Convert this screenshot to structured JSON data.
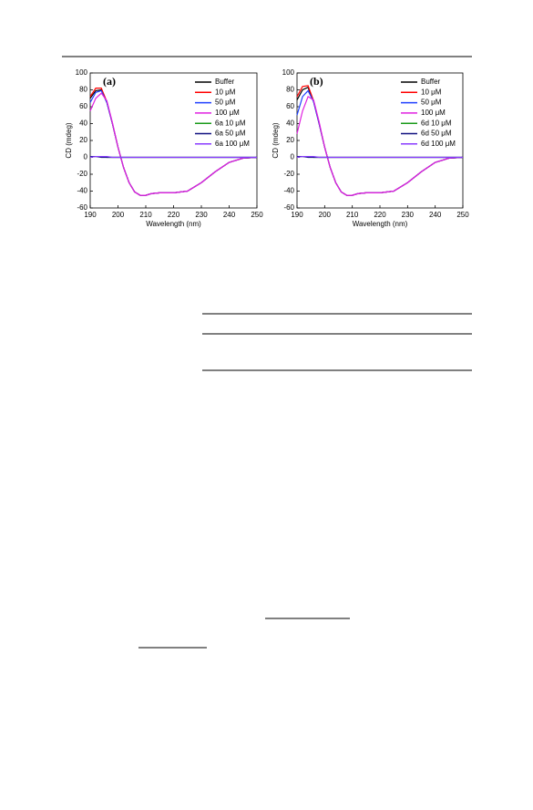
{
  "chart_data": [
    {
      "type": "line",
      "annotation": "(a)",
      "x_label": "Wavelength (nm)",
      "y_label": "CD (mdeg)",
      "x": [
        190,
        192,
        194,
        196,
        198,
        200,
        202,
        204,
        206,
        208,
        210,
        212,
        215,
        220,
        225,
        230,
        235,
        240,
        245,
        250
      ],
      "xlim": [
        190,
        250
      ],
      "ylim": [
        -60,
        100
      ],
      "xticks": [
        190,
        200,
        210,
        220,
        230,
        240,
        250
      ],
      "yticks": [
        -60,
        -40,
        -20,
        0,
        20,
        40,
        60,
        80,
        100
      ],
      "legend": "top-right",
      "series": [
        {
          "name": "Buffer",
          "color": "#000000",
          "values": [
            70,
            79,
            80,
            65,
            40,
            12,
            -12,
            -30,
            -41,
            -45,
            -45,
            -43,
            -42,
            -42,
            -40,
            -30,
            -17,
            -6,
            -1,
            0
          ]
        },
        {
          "name": "10 μM",
          "color": "#ff0000",
          "values": [
            72,
            82,
            82,
            66,
            40,
            12,
            -12,
            -30,
            -41,
            -45,
            -45,
            -43,
            -42,
            -42,
            -40,
            -30,
            -17,
            -6,
            -1,
            0
          ]
        },
        {
          "name": "50 μM",
          "color": "#1f3fff",
          "values": [
            65,
            77,
            79,
            65,
            40,
            12,
            -12,
            -30,
            -41,
            -45,
            -45,
            -43,
            -42,
            -42,
            -40,
            -30,
            -17,
            -6,
            -1,
            0
          ]
        },
        {
          "name": "100 μM",
          "color": "#e020e0",
          "values": [
            55,
            70,
            76,
            67,
            41,
            12,
            -12,
            -30,
            -41,
            -45,
            -45,
            -43,
            -42,
            -42,
            -40,
            -30,
            -17,
            -6,
            -1,
            0
          ]
        },
        {
          "name": "6a 10 μM",
          "color": "#1a9a1a",
          "values": [
            1,
            1,
            1,
            0,
            0,
            0,
            0,
            0,
            0,
            0,
            0,
            0,
            0,
            0,
            0,
            0,
            0,
            0,
            0,
            0
          ]
        },
        {
          "name": "6a 50 μM",
          "color": "#101080",
          "values": [
            1,
            1,
            0,
            0,
            0,
            0,
            0,
            0,
            0,
            0,
            0,
            0,
            0,
            0,
            0,
            0,
            0,
            0,
            0,
            0
          ]
        },
        {
          "name": "6a 100 μM",
          "color": "#8a3cff",
          "values": [
            0,
            1,
            1,
            1,
            0,
            0,
            0,
            0,
            0,
            0,
            0,
            0,
            0,
            0,
            0,
            0,
            0,
            0,
            0,
            0
          ]
        }
      ]
    },
    {
      "type": "line",
      "annotation": "(b)",
      "x_label": "Wavelength (nm)",
      "y_label": "CD (mdeg)",
      "x": [
        190,
        192,
        194,
        196,
        198,
        200,
        202,
        204,
        206,
        208,
        210,
        212,
        215,
        220,
        225,
        230,
        235,
        240,
        245,
        250
      ],
      "xlim": [
        190,
        250
      ],
      "ylim": [
        -60,
        100
      ],
      "xticks": [
        190,
        200,
        210,
        220,
        230,
        240,
        250
      ],
      "yticks": [
        -60,
        -40,
        -20,
        0,
        20,
        40,
        60,
        80,
        100
      ],
      "legend": "top-right",
      "series": [
        {
          "name": "Buffer",
          "color": "#000000",
          "values": [
            68,
            80,
            83,
            66,
            40,
            12,
            -12,
            -30,
            -41,
            -45,
            -45,
            -43,
            -42,
            -42,
            -40,
            -30,
            -17,
            -6,
            -1,
            0
          ]
        },
        {
          "name": "10 μM",
          "color": "#ff0000",
          "values": [
            72,
            84,
            85,
            67,
            40,
            12,
            -12,
            -30,
            -41,
            -45,
            -45,
            -43,
            -42,
            -42,
            -40,
            -30,
            -17,
            -6,
            -1,
            0
          ]
        },
        {
          "name": "50 μM",
          "color": "#1f3fff",
          "values": [
            50,
            72,
            79,
            66,
            40,
            12,
            -12,
            -30,
            -41,
            -45,
            -45,
            -43,
            -42,
            -42,
            -40,
            -30,
            -17,
            -6,
            -1,
            0
          ]
        },
        {
          "name": "100 μM",
          "color": "#e020e0",
          "values": [
            28,
            55,
            72,
            68,
            42,
            12,
            -12,
            -30,
            -41,
            -45,
            -45,
            -43,
            -42,
            -42,
            -40,
            -30,
            -17,
            -6,
            -1,
            0
          ]
        },
        {
          "name": "6d 10 μM",
          "color": "#1a9a1a",
          "values": [
            1,
            1,
            1,
            0,
            0,
            0,
            0,
            0,
            0,
            0,
            0,
            0,
            0,
            0,
            0,
            0,
            0,
            0,
            0,
            0
          ]
        },
        {
          "name": "6d 50 μM",
          "color": "#101080",
          "values": [
            1,
            1,
            0,
            0,
            0,
            0,
            0,
            0,
            0,
            0,
            0,
            0,
            0,
            0,
            0,
            0,
            0,
            0,
            0,
            0
          ]
        },
        {
          "name": "6d 100 μM",
          "color": "#8a3cff",
          "values": [
            0,
            1,
            1,
            1,
            0,
            0,
            0,
            0,
            0,
            0,
            0,
            0,
            0,
            0,
            0,
            0,
            0,
            0,
            0,
            0
          ]
        }
      ]
    }
  ]
}
